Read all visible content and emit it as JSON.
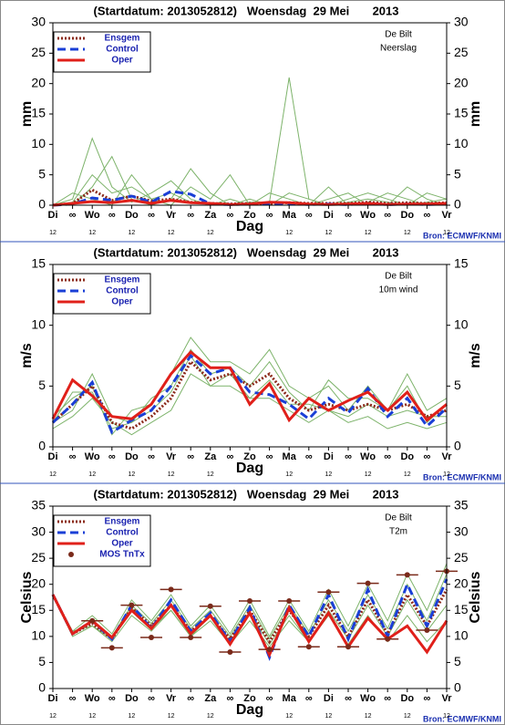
{
  "chart_data": [
    {
      "type": "line",
      "title": "(Startdatum: 2013052812)   Woensdag  29 Mei       2013",
      "location": "De Bilt",
      "subtitle": "Neerslag",
      "ylabel": "mm",
      "xlabel": "Dag",
      "source": "Bron: ECMWF/KNMI",
      "categories": [
        "Di",
        "∞",
        "Wo",
        "∞",
        "Do",
        "∞",
        "Vr",
        "∞",
        "Za",
        "∞",
        "Zo",
        "∞",
        "Ma",
        "∞",
        "Di",
        "∞",
        "Wo",
        "∞",
        "Do",
        "∞",
        "Vr"
      ],
      "hours": [
        "12",
        null,
        "12",
        null,
        "12",
        null,
        "12",
        null,
        "12",
        null,
        null,
        null,
        "12",
        null,
        "12",
        null,
        "12",
        null,
        "12",
        null,
        "12"
      ],
      "ylim": [
        0,
        30
      ],
      "yticks": [
        0,
        5,
        10,
        15,
        20,
        25,
        30
      ],
      "member_color": "#7db36a",
      "members": [
        [
          0,
          0.5,
          5,
          2,
          3,
          1,
          2,
          0.5,
          0.2,
          0,
          0.5,
          0.5,
          21,
          1,
          0,
          0.5,
          1,
          0.5,
          0,
          0.5,
          1
        ],
        [
          0,
          1,
          11,
          3,
          0.5,
          2,
          4,
          1,
          0,
          1,
          0,
          2,
          1,
          0,
          3,
          0,
          0.5,
          2,
          1,
          0,
          0.5
        ],
        [
          0,
          0,
          3,
          8,
          1,
          0,
          1,
          6,
          2,
          0,
          1,
          0,
          0,
          0,
          1,
          2,
          0,
          0,
          3,
          1,
          0
        ],
        [
          0,
          2,
          1,
          0,
          5,
          1,
          0,
          3,
          1,
          5,
          0,
          0,
          2,
          1,
          0,
          1,
          2,
          1,
          0,
          2,
          1
        ]
      ],
      "series": [
        {
          "name": "Ensgem",
          "color": "#8b2a1a",
          "style": "dotted",
          "values": [
            0,
            0.3,
            2.5,
            0.8,
            1.5,
            0.7,
            1,
            0.5,
            0.3,
            0.2,
            0.3,
            0.3,
            0.4,
            0.3,
            0.3,
            0.3,
            0.5,
            0.3,
            0.4,
            0.3,
            0.4
          ]
        },
        {
          "name": "Control",
          "color": "#1a3fd6",
          "style": "dashed",
          "values": [
            0,
            0.2,
            1.2,
            0.8,
            1.5,
            0.5,
            2.3,
            1.8,
            0.2,
            0.1,
            0.2,
            0.2,
            0.3,
            0.1,
            0.2,
            0.1,
            0.3,
            0.1,
            0.2,
            0.1,
            0.2
          ]
        },
        {
          "name": "Oper",
          "color": "#e0201a",
          "style": "solid",
          "values": [
            0,
            0.3,
            0.6,
            0.4,
            0.8,
            0.3,
            0.8,
            0.4,
            0.3,
            0.1,
            0.2,
            0.5,
            0.4,
            0.2,
            0.1,
            0.2,
            0.3,
            0.1,
            0.2,
            0.2,
            0.3
          ]
        }
      ]
    },
    {
      "type": "line",
      "title": "(Startdatum: 2013052812)   Woensdag  29 Mei       2013",
      "location": "De Bilt",
      "subtitle": "10m wind",
      "ylabel": "m/s",
      "xlabel": "Dag",
      "source": "Bron: ECMWF/KNMI",
      "categories": [
        "Di",
        "∞",
        "Wo",
        "∞",
        "Do",
        "∞",
        "Vr",
        "∞",
        "Za",
        "∞",
        "Zo",
        "∞",
        "Ma",
        "∞",
        "Di",
        "∞",
        "Wo",
        "∞",
        "Do",
        "∞",
        "Vr"
      ],
      "hours": [
        "12",
        null,
        "12",
        null,
        "12",
        null,
        "12",
        null,
        "12",
        null,
        null,
        null,
        "12",
        null,
        "12",
        null,
        "12",
        null,
        "12",
        null,
        "12"
      ],
      "ylim": [
        0,
        15
      ],
      "yticks": [
        0,
        5,
        10,
        15
      ],
      "member_color": "#7db36a",
      "members": [
        [
          2.5,
          4,
          5,
          1,
          3,
          3.5,
          6,
          9,
          7,
          7,
          6,
          8,
          5,
          4,
          5,
          3,
          5,
          3,
          6,
          3,
          4
        ],
        [
          1.5,
          2.5,
          4,
          2,
          1,
          2,
          3,
          6,
          5,
          5,
          4,
          4,
          3,
          2,
          3,
          2,
          2.5,
          1.5,
          2,
          1.5,
          2
        ],
        [
          2,
          3,
          6,
          2.5,
          2,
          4,
          5,
          8,
          6,
          6.5,
          5,
          7,
          4.5,
          3,
          5.5,
          4,
          4,
          3,
          5,
          2,
          3.5
        ],
        [
          2,
          4.5,
          4.5,
          1.5,
          2,
          3,
          4.5,
          7.5,
          5,
          6,
          4,
          5.5,
          3.5,
          3.5,
          3,
          2.5,
          3.5,
          2.5,
          3,
          2.5,
          2.5
        ]
      ],
      "series": [
        {
          "name": "Ensgem",
          "color": "#8b2a1a",
          "style": "dotted",
          "values": [
            2,
            3.5,
            5,
            2,
            1.5,
            2.5,
            4,
            7,
            5.5,
            6,
            5,
            6,
            4,
            3,
            3.5,
            3,
            3.5,
            3,
            3.5,
            2.5,
            3
          ]
        },
        {
          "name": "Control",
          "color": "#1a3fd6",
          "style": "dashed",
          "values": [
            2,
            3.5,
            5.3,
            1.2,
            2.2,
            3,
            5,
            7.5,
            6,
            6.5,
            4.5,
            4.3,
            3.5,
            2.3,
            4,
            2.8,
            4.8,
            2.5,
            4,
            1.7,
            3.2
          ]
        },
        {
          "name": "Oper",
          "color": "#e0201a",
          "style": "solid",
          "values": [
            2.3,
            5.5,
            4.2,
            2.5,
            2.3,
            3.5,
            6,
            7.8,
            6.5,
            6.5,
            3.5,
            5.2,
            2.2,
            4,
            3,
            3.8,
            4.5,
            3,
            4.5,
            2.2,
            3.5
          ]
        }
      ]
    },
    {
      "type": "line",
      "title": "(Startdatum: 2013052812)   Woensdag  29 Mei       2013",
      "location": "De Bilt",
      "subtitle": "T2m",
      "ylabel": "Celsius",
      "xlabel": "Dag",
      "source": "Bron: ECMWF/KNMI",
      "categories": [
        "Di",
        "∞",
        "Wo",
        "∞",
        "Do",
        "∞",
        "Vr",
        "∞",
        "Za",
        "∞",
        "Zo",
        "∞",
        "Ma",
        "∞",
        "Di",
        "∞",
        "Wo",
        "∞",
        "Do",
        "∞",
        "Vr"
      ],
      "hours": [
        "12",
        null,
        "12",
        null,
        "12",
        null,
        "12",
        null,
        "12",
        null,
        null,
        null,
        "12",
        null,
        "12",
        null,
        "12",
        null,
        "12",
        null,
        "12"
      ],
      "ylim": [
        0,
        35
      ],
      "yticks": [
        0,
        5,
        10,
        15,
        20,
        25,
        30,
        35
      ],
      "member_color": "#7db36a",
      "members": [
        [
          18,
          11,
          14,
          10.5,
          17,
          13,
          18,
          12,
          16,
          10.5,
          17,
          10,
          17,
          11,
          19,
          12,
          20,
          13,
          22,
          15,
          24
        ],
        [
          18,
          10,
          12,
          9,
          14,
          11,
          15,
          10,
          13,
          8.5,
          13,
          8,
          13,
          9,
          14,
          8.5,
          14,
          9,
          14,
          9,
          13
        ],
        [
          18,
          10.5,
          13,
          10,
          16,
          12.5,
          17,
          11.5,
          15,
          10,
          16,
          9.5,
          16,
          10.5,
          17,
          11,
          18,
          11.5,
          20,
          13,
          22
        ],
        [
          18,
          11,
          12,
          9.5,
          15.5,
          11.5,
          15,
          10,
          14,
          9,
          14.5,
          8.5,
          14,
          9,
          15,
          9.5,
          16,
          10,
          17,
          11,
          16
        ]
      ],
      "series": [
        {
          "name": "Ensgem",
          "color": "#8b2a1a",
          "style": "dotted",
          "values": [
            18,
            10.5,
            12.5,
            9.5,
            15.5,
            12,
            16,
            11,
            14,
            9.5,
            15,
            9,
            15,
            10,
            16,
            10,
            17,
            10.5,
            18,
            12,
            19
          ]
        },
        {
          "name": "Control",
          "color": "#1a3fd6",
          "style": "dashed",
          "values": [
            18,
            10.5,
            13,
            9.5,
            16,
            11.5,
            17,
            11,
            14.5,
            9,
            15.5,
            6,
            16,
            10,
            18,
            9.5,
            19,
            10,
            20,
            12,
            21
          ]
        },
        {
          "name": "Oper",
          "color": "#e0201a",
          "style": "solid",
          "values": [
            18,
            10.5,
            13,
            9.8,
            15,
            11.5,
            16,
            10.5,
            14,
            8.5,
            14.5,
            6.5,
            15.5,
            9,
            14.5,
            8,
            13.5,
            9.5,
            12,
            7,
            13
          ]
        },
        {
          "name": "MOS TnTx",
          "color": "#7a2a1a",
          "style": "dots",
          "values": [
            null,
            null,
            13,
            7.8,
            16,
            9.8,
            19,
            9.8,
            15.8,
            7,
            16.8,
            7.5,
            16.8,
            8,
            18.5,
            8,
            20.2,
            9.5,
            21.8,
            11.2,
            22.5
          ]
        }
      ]
    }
  ]
}
